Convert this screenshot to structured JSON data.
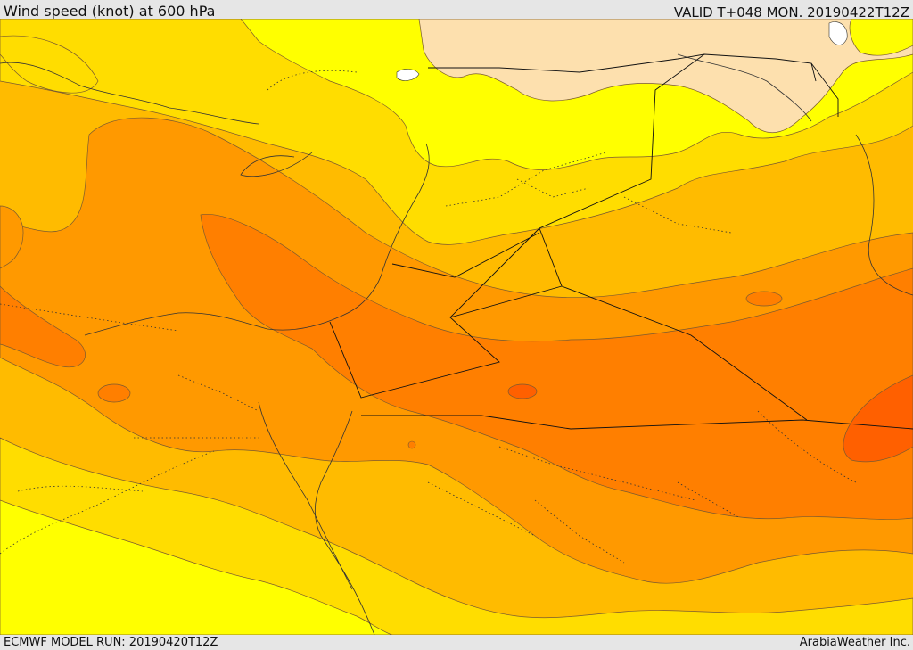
{
  "header": {
    "title": "Wind speed (knot) at 600 hPa",
    "valid": "VALID T+048 MON. 20190422T12Z"
  },
  "footer": {
    "model_run": "ECMWF MODEL RUN: 20190420T12Z",
    "credit": "ArabiaWeather Inc."
  },
  "colors": {
    "band_lightest": "#fde0ae",
    "band_yellow": "#ffff00",
    "band_gold": "#ffdd00",
    "band_amber": "#ffbb00",
    "band_orange": "#ff9900",
    "band_deep_orange": "#ff7f00",
    "band_red_orange": "#ff6000",
    "water_white": "#ffffff"
  }
}
